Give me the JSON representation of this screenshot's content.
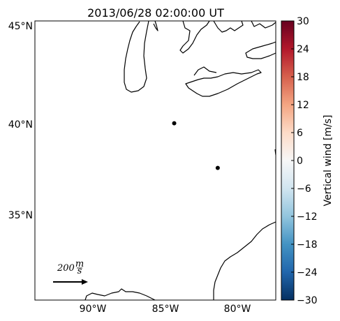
{
  "title": "2013/06/28 02:00:00 UT",
  "map": {
    "lat_labels": [
      "45°N",
      "40°N",
      "35°N"
    ],
    "lon_labels": [
      "90°W",
      "85°W",
      "80°W"
    ],
    "stations": [
      {
        "lon": -84.6,
        "lat": 40.0
      },
      {
        "lon": -81.6,
        "lat": 37.6
      }
    ]
  },
  "quiver_key": {
    "value": "200",
    "unit_num": "m",
    "unit_den": "s"
  },
  "colorbar": {
    "label": "Vertical wind [m/s]",
    "min": -30,
    "max": 30,
    "ticks": [
      "30",
      "24",
      "18",
      "12",
      "6",
      "0",
      "−6",
      "−12",
      "−18",
      "−24",
      "−30"
    ],
    "colors": [
      "#67001f",
      "#b2182b",
      "#d6604d",
      "#f4a582",
      "#fddbc7",
      "#f7f7f7",
      "#d1e5f0",
      "#92c5de",
      "#4393c3",
      "#2166ac",
      "#053061"
    ]
  }
}
